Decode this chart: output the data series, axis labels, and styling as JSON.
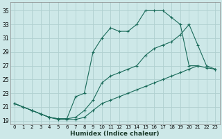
{
  "xlabel": "Humidex (Indice chaleur)",
  "bg_color": "#cde8e8",
  "grid_color": "#b0d0d0",
  "line_color": "#1a6b5a",
  "xlim": [
    -0.5,
    23.5
  ],
  "ylim": [
    18.5,
    36.2
  ],
  "xticks": [
    0,
    1,
    2,
    3,
    4,
    5,
    6,
    7,
    8,
    9,
    10,
    11,
    12,
    13,
    14,
    15,
    16,
    17,
    18,
    19,
    20,
    21,
    22,
    23
  ],
  "yticks": [
    19,
    21,
    23,
    25,
    27,
    29,
    31,
    33,
    35
  ],
  "line_top_x": [
    0,
    1,
    2,
    3,
    4,
    5,
    6,
    7,
    8,
    9,
    10,
    11,
    12,
    13,
    14,
    15,
    16,
    17,
    18,
    19,
    20,
    21
  ],
  "line_top_y": [
    21.5,
    21.0,
    20.5,
    20.0,
    19.5,
    19.3,
    19.3,
    22.5,
    23.0,
    29.0,
    31.0,
    32.5,
    32.0,
    32.0,
    33.0,
    35.0,
    35.0,
    35.0,
    34.0,
    33.0,
    27.0,
    27.0
  ],
  "line_mid_x": [
    0,
    1,
    2,
    3,
    4,
    5,
    6,
    7,
    8,
    9,
    10,
    11,
    12,
    13,
    14,
    15,
    16,
    17,
    18,
    19,
    20,
    21,
    22,
    23
  ],
  "line_mid_y": [
    21.5,
    21.0,
    20.5,
    20.0,
    19.5,
    19.3,
    19.3,
    19.5,
    20.5,
    22.0,
    24.5,
    25.5,
    26.0,
    26.5,
    27.0,
    28.5,
    29.5,
    30.0,
    30.5,
    31.5,
    33.0,
    30.0,
    27.0,
    26.5
  ],
  "line_bot_x": [
    0,
    2,
    3,
    4,
    5,
    6,
    7,
    8,
    9,
    10,
    11,
    12,
    13,
    14,
    15,
    16,
    17,
    18,
    19,
    20,
    21,
    22,
    23
  ],
  "line_bot_y": [
    21.5,
    20.5,
    20.0,
    19.5,
    19.2,
    19.2,
    19.2,
    19.5,
    20.5,
    21.5,
    22.0,
    22.5,
    23.0,
    23.5,
    24.0,
    24.5,
    25.0,
    25.5,
    26.0,
    26.5,
    27.0,
    26.7,
    26.5
  ]
}
